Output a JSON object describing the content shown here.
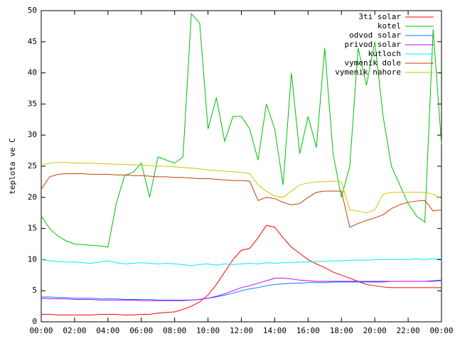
{
  "chart_data": {
    "type": "line",
    "ylabel": "teplota ve C",
    "xlim": [
      0,
      24
    ],
    "ylim": [
      0,
      50
    ],
    "xticks": [
      {
        "value": 0,
        "label": "00:00"
      },
      {
        "value": 2,
        "label": "02:00"
      },
      {
        "value": 4,
        "label": "04:00"
      },
      {
        "value": 6,
        "label": "06:00"
      },
      {
        "value": 8,
        "label": "08:00"
      },
      {
        "value": 10,
        "label": "10:00"
      },
      {
        "value": 12,
        "label": "12:00"
      },
      {
        "value": 14,
        "label": "14:00"
      },
      {
        "value": 16,
        "label": "16:00"
      },
      {
        "value": 18,
        "label": "18:00"
      },
      {
        "value": 20,
        "label": "20:00"
      },
      {
        "value": 22,
        "label": "22:00"
      },
      {
        "value": 24,
        "label": "00:00"
      }
    ],
    "yticks": [
      0,
      5,
      10,
      15,
      20,
      25,
      30,
      35,
      40,
      45,
      50
    ],
    "legend": "top-right",
    "x": [
      0,
      0.5,
      1,
      1.5,
      2,
      2.5,
      3,
      3.5,
      4,
      4.5,
      5,
      5.5,
      6,
      6.5,
      7,
      7.5,
      8,
      8.5,
      9,
      9.5,
      10,
      10.5,
      11,
      11.5,
      12,
      12.5,
      13,
      13.5,
      14,
      14.5,
      15,
      15.5,
      16,
      16.5,
      17,
      17.5,
      18,
      18.5,
      19,
      19.5,
      20,
      20.5,
      21,
      21.5,
      22,
      22.5,
      23,
      23.5,
      24
    ],
    "series": [
      {
        "name": "3ti solar",
        "color": "#ff0000",
        "values": [
          1.2,
          1.2,
          1.1,
          1.1,
          1.1,
          1.1,
          1.1,
          1.2,
          1.2,
          1.2,
          1.1,
          1.1,
          1.2,
          1.2,
          1.4,
          1.5,
          1.6,
          2,
          2.5,
          3.2,
          4.3,
          6,
          8,
          10,
          11.5,
          11.8,
          13.5,
          15.5,
          15.2,
          13.5,
          12,
          11,
          10,
          9.3,
          8.7,
          8,
          7.5,
          7,
          6.5,
          6,
          5.8,
          5.6,
          5.5,
          5.5,
          5.5,
          5.5,
          5.5,
          5.5,
          5.5
        ]
      },
      {
        "name": "kotel",
        "color": "#00c000",
        "values": [
          17,
          15,
          13.8,
          13,
          12.5,
          12.4,
          12.3,
          12.2,
          12,
          19,
          23.5,
          24,
          25.5,
          20,
          26.5,
          26,
          25.5,
          26.5,
          49.5,
          48,
          31,
          36,
          29,
          33,
          33,
          31,
          26,
          35,
          31,
          22,
          40,
          27,
          33,
          28,
          44,
          27,
          20,
          25,
          44,
          38,
          45,
          33,
          25,
          22,
          19,
          17,
          16,
          47,
          28.5
        ]
      },
      {
        "name": "odvod solar",
        "color": "#0080ff",
        "values": [
          4,
          4,
          3.9,
          3.9,
          3.8,
          3.8,
          3.8,
          3.7,
          3.7,
          3.7,
          3.6,
          3.6,
          3.6,
          3.6,
          3.5,
          3.5,
          3.5,
          3.5,
          3.5,
          3.6,
          3.8,
          4,
          4.3,
          4.6,
          5,
          5.3,
          5.5,
          5.8,
          6,
          6.1,
          6.2,
          6.2,
          6.3,
          6.3,
          6.3,
          6.4,
          6.4,
          6.4,
          6.4,
          6.4,
          6.4,
          6.4,
          6.5,
          6.5,
          6.5,
          6.5,
          6.5,
          6.5,
          6.6
        ]
      },
      {
        "name": "privod solar",
        "color": "#c000ff",
        "values": [
          3.8,
          3.7,
          3.7,
          3.7,
          3.6,
          3.6,
          3.6,
          3.5,
          3.5,
          3.5,
          3.5,
          3.5,
          3.4,
          3.4,
          3.4,
          3.4,
          3.4,
          3.4,
          3.5,
          3.6,
          3.8,
          4.1,
          4.5,
          5,
          5.5,
          5.8,
          6.2,
          6.6,
          7,
          7,
          6.9,
          6.7,
          6.6,
          6.5,
          6.5,
          6.5,
          6.5,
          6.5,
          6.5,
          6.5,
          6.5,
          6.5,
          6.5,
          6.5,
          6.5,
          6.5,
          6.5,
          6.6,
          6.7
        ]
      },
      {
        "name": "kutloch",
        "color": "#00eeee",
        "values": [
          10,
          9.8,
          9.7,
          9.6,
          9.6,
          9.5,
          9.4,
          9.6,
          9.8,
          9.5,
          9.3,
          9.4,
          9.5,
          9.4,
          9.3,
          9.4,
          9.3,
          9.2,
          9,
          9.2,
          9.3,
          9.1,
          9.3,
          9.2,
          9.3,
          9.4,
          9.3,
          9.5,
          9.4,
          9.5,
          9.5,
          9.6,
          9.6,
          9.7,
          9.7,
          9.8,
          9.8,
          9.9,
          9.9,
          9.9,
          10,
          10,
          10,
          10,
          10,
          10.1,
          10,
          10.1,
          10.1
        ]
      },
      {
        "name": "vymenik dole",
        "color": "#c04000",
        "values": [
          21.3,
          23.3,
          23.7,
          23.8,
          23.8,
          23.8,
          23.7,
          23.7,
          23.7,
          23.6,
          23.6,
          23.5,
          23.5,
          23.4,
          23.3,
          23.3,
          23.2,
          23.2,
          23.1,
          23,
          23,
          22.9,
          22.8,
          22.7,
          22.7,
          22.6,
          19.5,
          20,
          19.8,
          19.2,
          18.8,
          19,
          20,
          20.8,
          21,
          21,
          21,
          15.2,
          15.8,
          16.3,
          16.7,
          17.2,
          18.2,
          18.8,
          19.2,
          19.4,
          19.5,
          17.8,
          18
        ]
      },
      {
        "name": "vymenik nahore",
        "color": "#c8c800",
        "values": [
          25.2,
          25.5,
          25.6,
          25.6,
          25.5,
          25.5,
          25.5,
          25.4,
          25.4,
          25.3,
          25.3,
          25.2,
          25.2,
          25.1,
          25,
          25,
          24.9,
          24.8,
          24.7,
          24.6,
          24.4,
          24.3,
          24.2,
          24.1,
          24,
          23.8,
          22,
          21,
          20.2,
          20,
          21,
          22,
          22.3,
          22.5,
          22.5,
          22.6,
          22.5,
          18,
          17.8,
          17.5,
          18,
          20.5,
          20.8,
          20.8,
          20.8,
          20.8,
          20.8,
          20.5,
          19.8
        ]
      }
    ]
  }
}
